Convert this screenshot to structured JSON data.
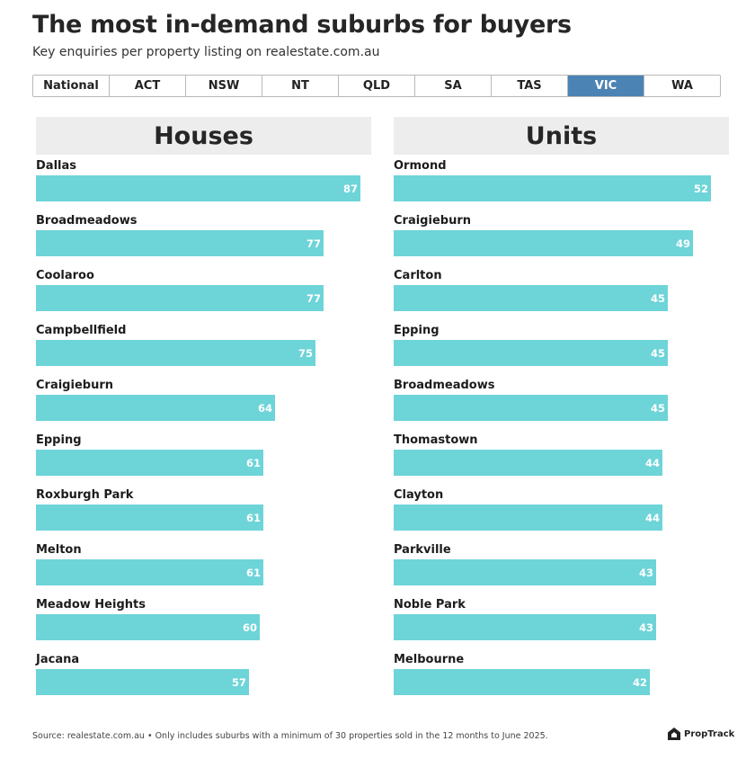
{
  "title": "The most in-demand suburbs for buyers",
  "subtitle": "Key enquiries per property listing on realestate.com.au",
  "tabs": [
    "National",
    "ACT",
    "NSW",
    "NT",
    "QLD",
    "SA",
    "TAS",
    "VIC",
    "WA"
  ],
  "active_tab": "VIC",
  "footer": "Source: realestate.com.au • Only includes suburbs with a minimum of 30 properties sold in the 12 months to June 2025.",
  "brand": "PropTrack",
  "colors": {
    "bar": "#6dd4d8",
    "active_tab": "#4b83b4",
    "panel_header_bg": "#ededed"
  },
  "chart_data": [
    {
      "type": "bar",
      "orientation": "horizontal",
      "title": "Houses",
      "categories": [
        "Dallas",
        "Broadmeadows",
        "Coolaroo",
        "Campbellfield",
        "Craigieburn",
        "Epping",
        "Roxburgh Park",
        "Melton",
        "Meadow Heights",
        "Jacana"
      ],
      "values": [
        87,
        77,
        77,
        75,
        64,
        61,
        61,
        61,
        60,
        57
      ]
    },
    {
      "type": "bar",
      "orientation": "horizontal",
      "title": "Units",
      "categories": [
        "Ormond",
        "Craigieburn",
        "Carlton",
        "Epping",
        "Broadmeadows",
        "Thomastown",
        "Clayton",
        "Parkville",
        "Noble Park",
        "Melbourne"
      ],
      "values": [
        52,
        49,
        45,
        45,
        45,
        44,
        44,
        43,
        43,
        42
      ]
    }
  ]
}
